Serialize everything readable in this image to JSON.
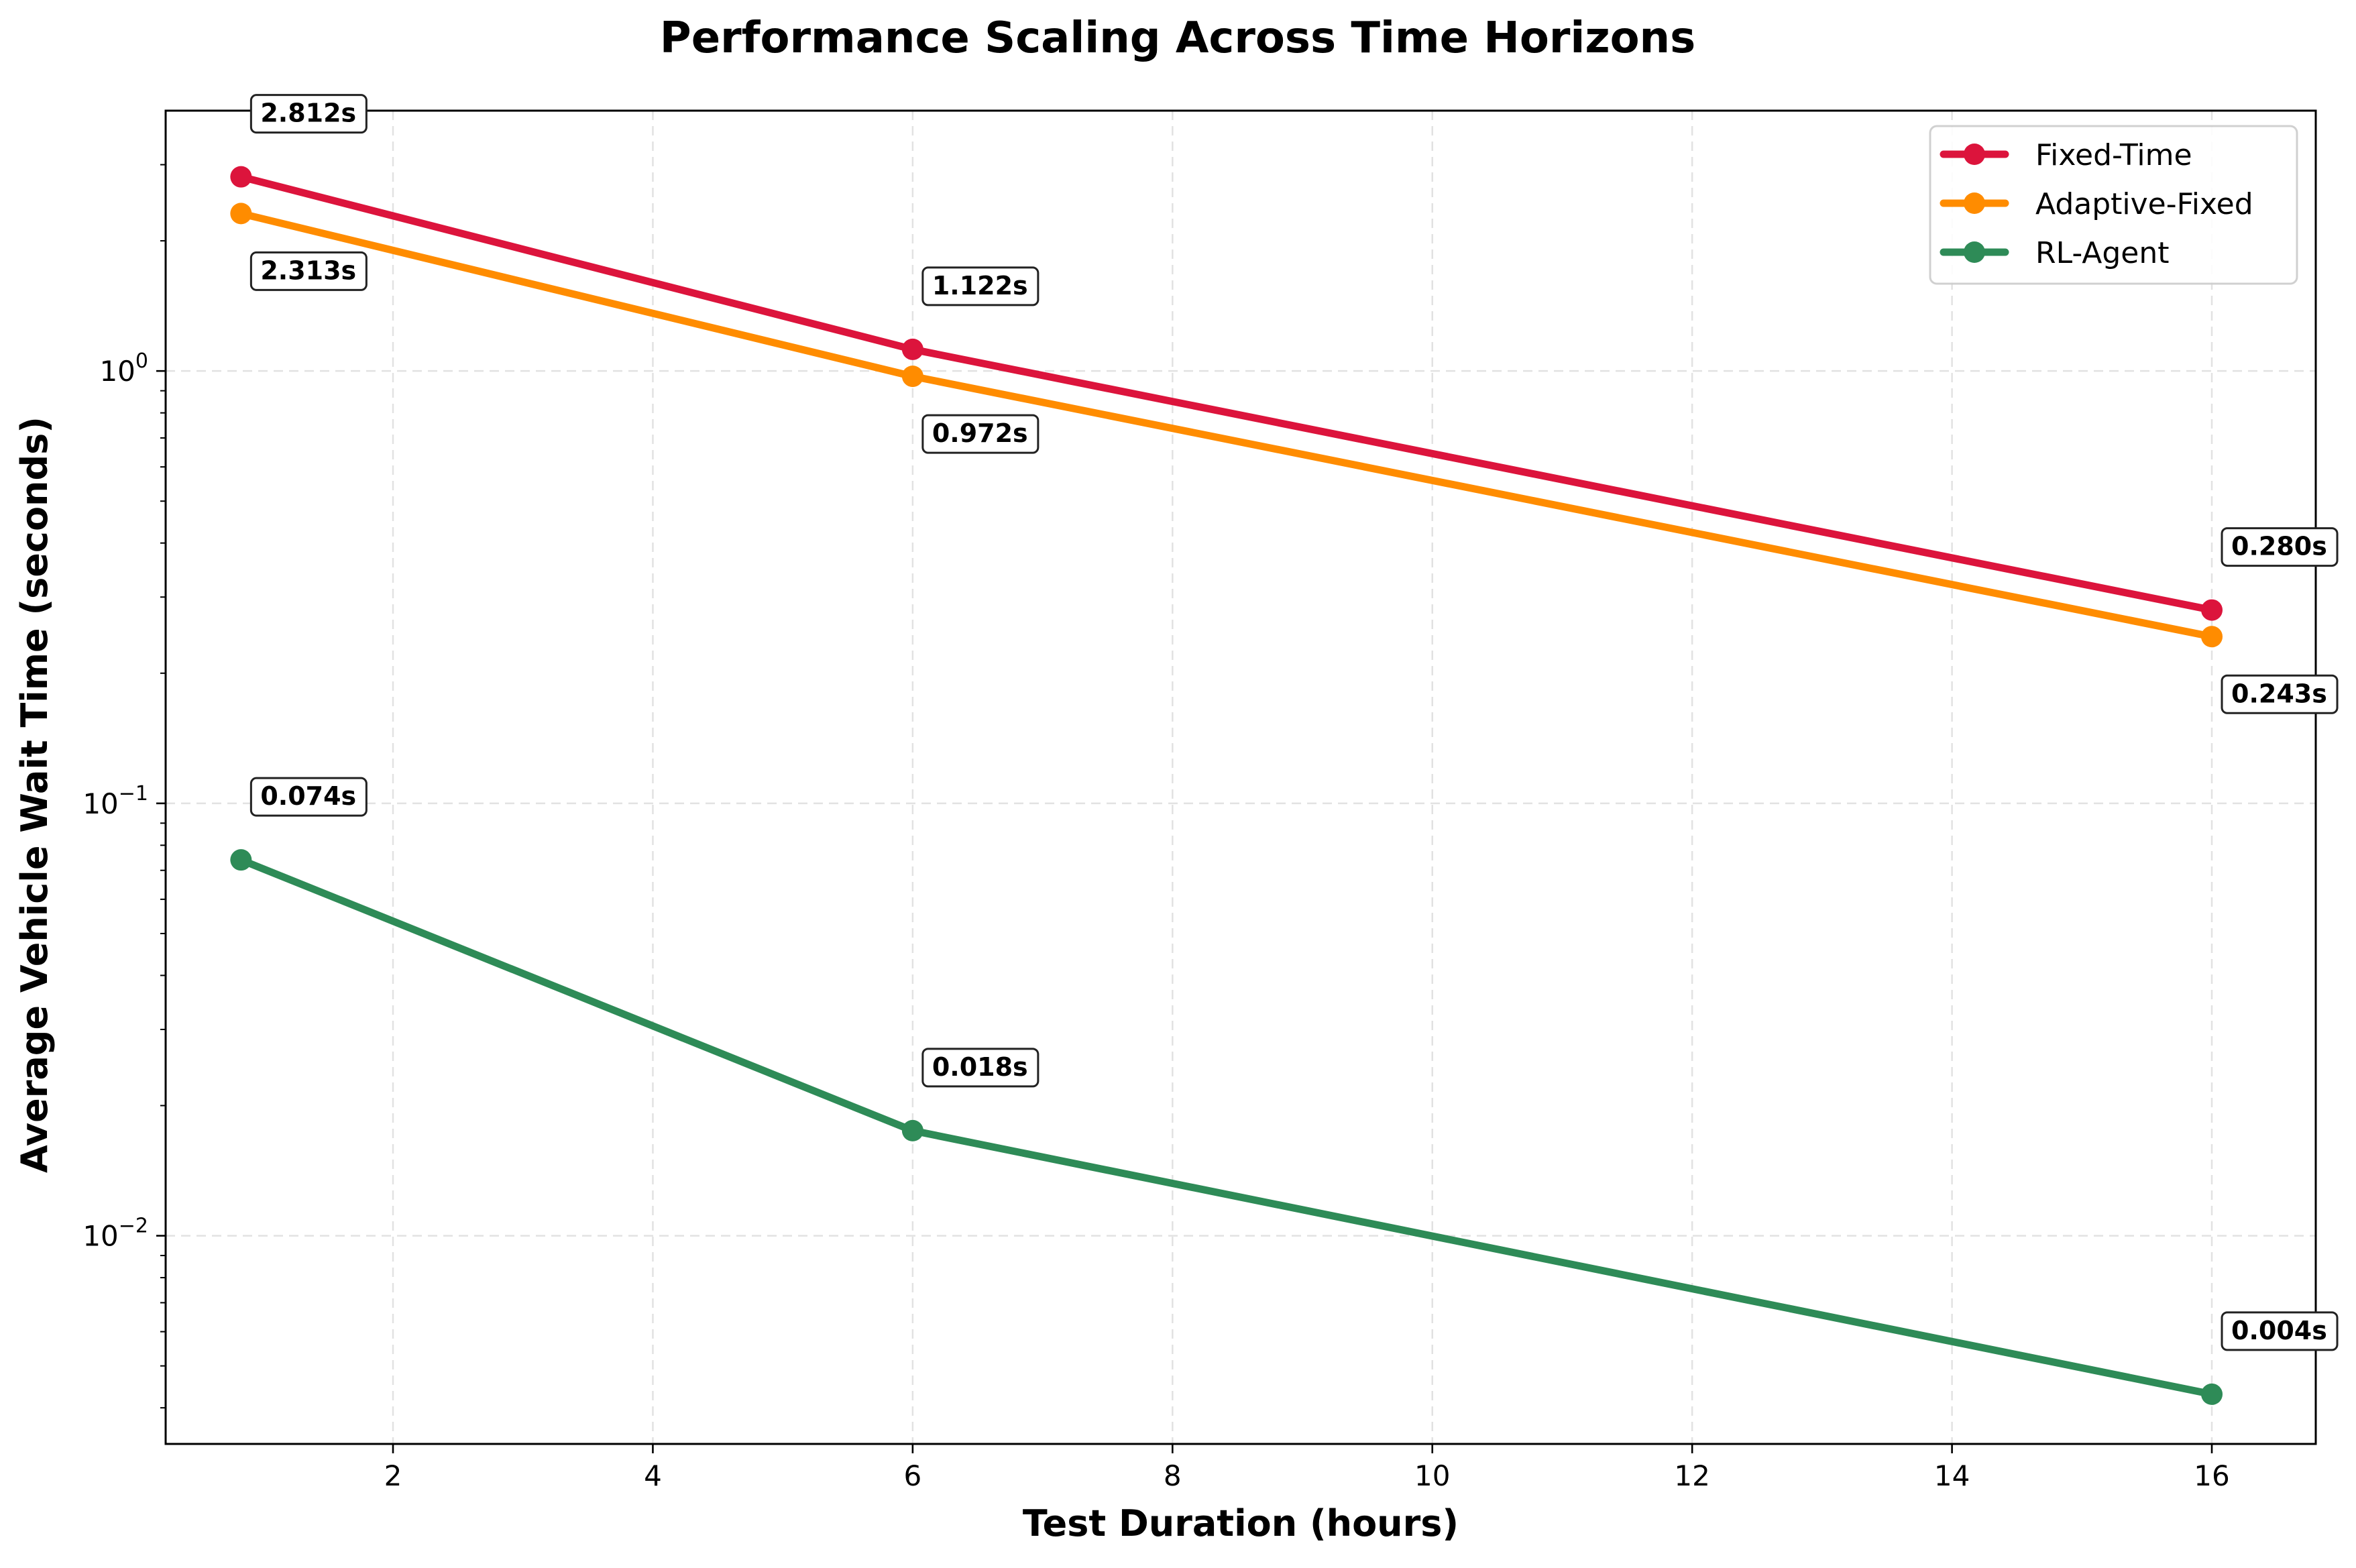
{
  "chart_data": {
    "type": "line",
    "title": "Performance Scaling Across Time Horizons",
    "xlabel": "Test Duration (hours)",
    "ylabel": "Average Vehicle Wait Time (seconds)",
    "x": [
      0.83,
      6,
      16
    ],
    "xlim": [
      0.25,
      16.8
    ],
    "ylim": [
      0.0033,
      4.0
    ],
    "yscale": "log",
    "x_ticks": [
      2,
      4,
      6,
      8,
      10,
      12,
      14,
      16
    ],
    "x_tick_labels": [
      "2",
      "4",
      "6",
      "8",
      "10",
      "12",
      "14",
      "16"
    ],
    "y_ticks": [
      {
        "value": 1,
        "base": "10",
        "exp": "0"
      },
      {
        "value": 0.1,
        "base": "10",
        "exp": "−1"
      },
      {
        "value": 0.01,
        "base": "10",
        "exp": "−2"
      }
    ],
    "grid": true,
    "legend_position": "top-right",
    "series": [
      {
        "name": "Fixed-Time",
        "color": "#dc143c",
        "values": [
          2.812,
          1.122,
          0.28
        ],
        "labels": [
          "2.812s",
          "1.122s",
          "0.280s"
        ],
        "label_positions": [
          "above",
          "above",
          "above"
        ]
      },
      {
        "name": "Adaptive-Fixed",
        "color": "#ff8c00",
        "values": [
          2.313,
          0.972,
          0.243
        ],
        "labels": [
          "2.313s",
          "0.972s",
          "0.243s"
        ],
        "label_positions": [
          "below",
          "below",
          "below"
        ]
      },
      {
        "name": "RL-Agent",
        "color": "#2e8b57",
        "values": [
          0.074,
          0.0175,
          0.0043
        ],
        "labels": [
          "0.074s",
          "0.018s",
          "0.004s"
        ],
        "label_positions": [
          "above",
          "above",
          "above"
        ]
      }
    ]
  }
}
